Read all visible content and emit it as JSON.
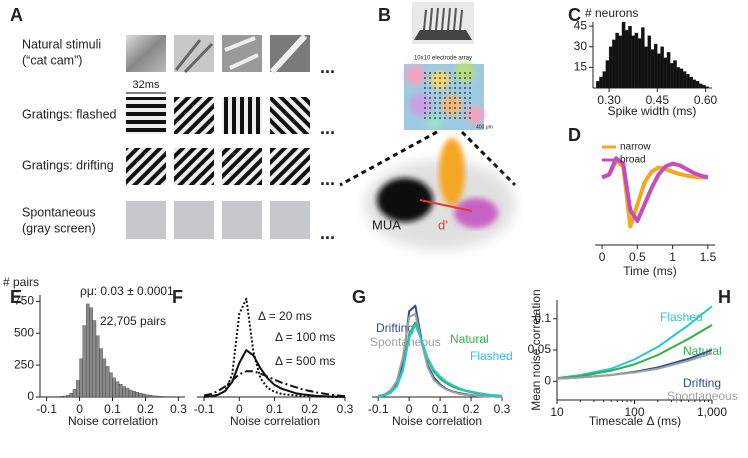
{
  "panel_a": {
    "label": "A",
    "rows": [
      {
        "lines": [
          "Natural stimuli",
          "(“cat cam”)"
        ],
        "color": "#2db34a"
      },
      {
        "lines": [
          "Gratings: flashed"
        ],
        "color": "#29c5d8"
      },
      {
        "lines": [
          "Gratings: drifting"
        ],
        "color": "#2b4c9b"
      },
      {
        "lines": [
          "Spontaneous",
          "(gray screen)"
        ],
        "color": "#a8a8a8"
      }
    ],
    "scale_label": "32ms",
    "ellipsis": "..."
  },
  "panel_b": {
    "label": "B",
    "array_caption": "10x10 electrode array",
    "scale_bar": "400 μm",
    "cluster_label": "MUA",
    "distance_label": "d'"
  },
  "chart_data": [
    {
      "type": "histogram",
      "label": "C",
      "ylabel": "# neurons",
      "xlabel": "Spike width (ms)",
      "color": "#111111",
      "bins": [
        0.26,
        0.27,
        0.28,
        0.29,
        0.3,
        0.31,
        0.32,
        0.33,
        0.34,
        0.35,
        0.36,
        0.37,
        0.38,
        0.39,
        0.4,
        0.41,
        0.42,
        0.43,
        0.44,
        0.45,
        0.46,
        0.47,
        0.48,
        0.49,
        0.5,
        0.51,
        0.52,
        0.53,
        0.54,
        0.55,
        0.56,
        0.57,
        0.58,
        0.59,
        0.6,
        0.61
      ],
      "values": [
        5,
        8,
        12,
        20,
        30,
        35,
        40,
        38,
        48,
        42,
        45,
        38,
        40,
        36,
        44,
        30,
        38,
        28,
        32,
        25,
        30,
        22,
        26,
        18,
        20,
        15,
        14,
        12,
        10,
        8,
        6,
        5,
        3,
        2,
        1
      ],
      "xlim": [
        0.25,
        0.62
      ],
      "xticks": [
        {
          "value": 0.3,
          "label": "0.30"
        },
        0.45,
        {
          "value": 0.6,
          "label": "0.60"
        }
      ],
      "ylim": [
        0,
        48
      ],
      "yticks": [
        15,
        30,
        45
      ]
    },
    {
      "type": "line",
      "label": "D",
      "xlabel": "Time (ms)",
      "x": [
        0,
        0.1,
        0.2,
        0.3,
        0.4,
        0.5,
        0.6,
        0.7,
        0.8,
        0.9,
        1.0,
        1.1,
        1.2,
        1.3,
        1.4,
        1.5
      ],
      "series": [
        {
          "name": "narrow",
          "color": "#f5a623",
          "values": [
            0,
            0.05,
            0.3,
            0.2,
            -0.9,
            -0.5,
            -0.1,
            0.1,
            0.18,
            0.15,
            0.1,
            0.06,
            0.03,
            0.01,
            0,
            0
          ]
        },
        {
          "name": "broad",
          "color": "#c44dbd",
          "values": [
            0,
            0.05,
            0.35,
            0.25,
            -0.6,
            -0.8,
            -0.5,
            -0.2,
            0.05,
            0.2,
            0.25,
            0.22,
            0.15,
            0.08,
            0.03,
            0
          ]
        }
      ],
      "xlim": [
        -0.1,
        1.6
      ],
      "xticks": [
        0,
        0.5,
        1,
        1.5
      ],
      "ylim": [
        -1,
        0.5
      ],
      "legend": "top-left"
    },
    {
      "type": "histogram",
      "label": "E",
      "ylabel": "# pairs",
      "xlabel": "Noise correlation",
      "color": "#8a8a8a",
      "annotations": [
        "ρμ: 0.03 ± 0.0001",
        "22,705 pairs"
      ],
      "bins": [
        -0.08,
        -0.07,
        -0.06,
        -0.05,
        -0.04,
        -0.03,
        -0.02,
        -0.01,
        0,
        0.01,
        0.02,
        0.03,
        0.04,
        0.05,
        0.06,
        0.07,
        0.08,
        0.09,
        0.1,
        0.11,
        0.12,
        0.13,
        0.14,
        0.15,
        0.16,
        0.17,
        0.18,
        0.19,
        0.2,
        0.21,
        0.22,
        0.23,
        0.24,
        0.25,
        0.26,
        0.27,
        0.28
      ],
      "values": [
        2,
        3,
        5,
        8,
        15,
        30,
        60,
        130,
        300,
        560,
        730,
        700,
        600,
        480,
        380,
        300,
        240,
        190,
        150,
        120,
        100,
        82,
        68,
        55,
        45,
        38,
        30,
        24,
        18,
        14,
        10,
        8,
        6,
        4,
        3,
        2
      ],
      "xlim": [
        -0.12,
        0.32
      ],
      "xticks": [
        -0.1,
        0,
        0.1,
        0.2,
        0.3
      ],
      "ylim": [
        0,
        800
      ],
      "yticks": [
        0,
        250,
        500,
        750
      ]
    },
    {
      "type": "line",
      "label": "F",
      "xlabel": "Noise correlation",
      "x": [
        -0.1,
        -0.08,
        -0.06,
        -0.04,
        -0.02,
        0,
        0.02,
        0.04,
        0.06,
        0.08,
        0.1,
        0.12,
        0.14,
        0.16,
        0.18,
        0.2,
        0.22,
        0.24,
        0.26,
        0.28,
        0.3
      ],
      "series": [
        {
          "name": "Δ = 20 ms",
          "color": "#111111",
          "dash": "dotted",
          "values": [
            0,
            0.1,
            0.3,
            0.8,
            3,
            11,
            13,
            6,
            2.5,
            1.2,
            0.7,
            0.4,
            0.3,
            0.2,
            0.1,
            0.1,
            0.05,
            0.05,
            0,
            0,
            0
          ]
        },
        {
          "name": "Δ = 100 ms",
          "color": "#111111",
          "dash": "solid",
          "values": [
            0,
            0.1,
            0.3,
            0.8,
            2,
            4.5,
            6.2,
            5.5,
            3.8,
            2.5,
            1.6,
            1.1,
            0.8,
            0.5,
            0.35,
            0.25,
            0.15,
            0.1,
            0.05,
            0.05,
            0
          ]
        },
        {
          "name": "Δ = 500 ms",
          "color": "#111111",
          "dash": "dashdot",
          "values": [
            0.2,
            0.4,
            0.8,
            1.4,
            2.2,
            3,
            3.4,
            3.4,
            3.1,
            2.7,
            2.3,
            1.9,
            1.6,
            1.3,
            1.0,
            0.8,
            0.6,
            0.45,
            0.3,
            0.2,
            0.1
          ]
        }
      ],
      "xlim": [
        -0.12,
        0.3
      ],
      "xticks": [
        -0.1,
        0,
        0.1,
        0.2,
        0.3
      ],
      "ylim": [
        0,
        13.5
      ]
    },
    {
      "type": "line",
      "label": "G",
      "xlabel": "Noise correlation",
      "x": [
        -0.1,
        -0.08,
        -0.06,
        -0.04,
        -0.02,
        0,
        0.02,
        0.04,
        0.06,
        0.08,
        0.1,
        0.12,
        0.14,
        0.16,
        0.18,
        0.2,
        0.22,
        0.24,
        0.26,
        0.28,
        0.3
      ],
      "series": [
        {
          "name": "Drifting",
          "color": "#2b4c9b",
          "values": [
            0.1,
            0.2,
            0.5,
            1.2,
            3,
            7.5,
            8,
            5,
            2.8,
            1.7,
            1.1,
            0.7,
            0.5,
            0.35,
            0.25,
            0.18,
            0.12,
            0.08,
            0.05,
            0.03,
            0.02
          ]
        },
        {
          "name": "Spontaneous",
          "color": "#a0a0a0",
          "values": [
            0.1,
            0.2,
            0.6,
            1.4,
            3.5,
            7,
            7.3,
            4.8,
            2.6,
            1.5,
            1,
            0.65,
            0.45,
            0.3,
            0.2,
            0.15,
            0.1,
            0.07,
            0.05,
            0.03,
            0.02
          ]
        },
        {
          "name": "Natural",
          "color": "#2db34a",
          "values": [
            0.05,
            0.15,
            0.4,
            1,
            2.5,
            5.5,
            6.5,
            5,
            3.3,
            2.2,
            1.6,
            1.2,
            0.9,
            0.7,
            0.55,
            0.42,
            0.32,
            0.25,
            0.18,
            0.13,
            0.1
          ]
        },
        {
          "name": "Flashed",
          "color": "#29c5d8",
          "values": [
            0.05,
            0.12,
            0.35,
            0.9,
            2.3,
            5.2,
            6.3,
            5,
            3.4,
            2.4,
            1.8,
            1.35,
            1.05,
            0.8,
            0.6,
            0.48,
            0.37,
            0.28,
            0.2,
            0.15,
            0.11
          ]
        }
      ],
      "xlim": [
        -0.12,
        0.3
      ],
      "xticks": [
        -0.1,
        0,
        0.1,
        0.2,
        0.3
      ],
      "ylim": [
        0,
        8.5
      ]
    },
    {
      "type": "line",
      "label": "H",
      "ylabel": "Mean noise correlation",
      "xlabel": "Timescale Δ (ms)",
      "logx": true,
      "x": [
        10,
        20,
        50,
        100,
        200,
        500,
        1000
      ],
      "series": [
        {
          "name": "Flashed",
          "color": "#29c5d8",
          "values": [
            0.005,
            0.01,
            0.02,
            0.035,
            0.055,
            0.09,
            0.12
          ]
        },
        {
          "name": "Natural",
          "color": "#2db34a",
          "values": [
            0.005,
            0.008,
            0.017,
            0.027,
            0.042,
            0.068,
            0.09
          ]
        },
        {
          "name": "Drifting",
          "color": "#2b4c9b",
          "values": [
            0.004,
            0.006,
            0.01,
            0.015,
            0.022,
            0.036,
            0.05
          ]
        },
        {
          "name": "Spontaneous",
          "color": "#a0a0a0",
          "values": [
            0.004,
            0.006,
            0.01,
            0.014,
            0.02,
            0.033,
            0.045
          ]
        }
      ],
      "xlim": [
        10,
        1000
      ],
      "xticks": [
        10,
        100,
        {
          "value": 1000,
          "label": "1,000"
        }
      ],
      "ylim": [
        -0.03,
        0.13
      ],
      "yticks": [
        0,
        0.05,
        0.1
      ]
    }
  ]
}
